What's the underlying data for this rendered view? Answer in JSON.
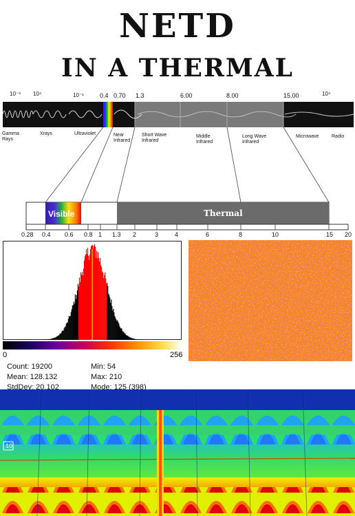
{
  "title": {
    "line1": "NETD",
    "line2": "IN A THERMAL"
  },
  "spectrum": {
    "top_values": [
      "10⁻⁶",
      "10⁴",
      "10⁻¹",
      "0.4",
      "0.70",
      "1.3",
      "6.00",
      "8.00",
      "15.00",
      "10⁴"
    ],
    "bands": [
      "Gamma Rays",
      "Xrays",
      "Ultraviolet",
      "Near Infrared",
      "Short Wave Infrared",
      "Middle Infrared",
      "Long Wave Infrared",
      "Microwave",
      "Radio"
    ]
  },
  "zoom_bar": {
    "visible_label": "Visible",
    "thermal_label": "Thermal",
    "scale_ticks": [
      "0.28",
      "0.4",
      "0.6",
      "0.8",
      "1",
      "1.3",
      "2",
      "3",
      "4",
      "6",
      "8",
      "10",
      "15",
      "20"
    ]
  },
  "histogram": {
    "axis_min": "0",
    "axis_max": "256",
    "stats": {
      "count": "Count: 19200",
      "mean": "Mean: 128.132",
      "stddev": "StdDev: 20.102",
      "min": "Min: 54",
      "max": "Max: 210",
      "mode": "Mode: 125 (398)"
    }
  },
  "thermal_image": {
    "marker_label": "10"
  },
  "colors": {
    "thermal_bar": "#6b6b6b",
    "histogram_highlight": "#ff0000",
    "mean_line": "#ffb000"
  }
}
